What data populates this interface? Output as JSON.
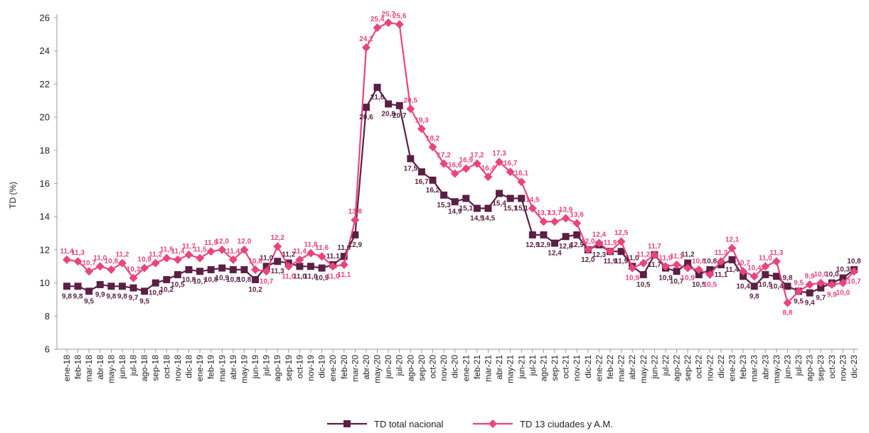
{
  "chart_data": {
    "type": "line",
    "ylabel": "TD (%)",
    "xlabel": "",
    "ylim": [
      6,
      26
    ],
    "yticks": [
      6,
      8,
      10,
      12,
      14,
      16,
      18,
      20,
      22,
      24,
      26
    ],
    "grid": false,
    "legend_position": "bottom",
    "categories": [
      "ene-18",
      "feb-18",
      "mar-18",
      "abr-18",
      "may-18",
      "jun-18",
      "jul-18",
      "ago-18",
      "sep-18",
      "oct-18",
      "nov-18",
      "dic-18",
      "ene-19",
      "feb-19",
      "mar-19",
      "abr-19",
      "may-19",
      "jun-19",
      "jul-19",
      "ago-19",
      "sep-19",
      "oct-19",
      "nov-19",
      "dic-19",
      "ene-20",
      "feb-20",
      "mar-20",
      "abr-20",
      "may-20",
      "jun-20",
      "jul-20",
      "ago-20",
      "sep-20",
      "oct-20",
      "nov-20",
      "dic-20",
      "ene-21",
      "feb-21",
      "mar-21",
      "abr-21",
      "may-21",
      "jun-21",
      "jul-21",
      "ago-21",
      "sep-21",
      "oct-21",
      "nov-21",
      "dic-21",
      "ene-22",
      "feb-22",
      "mar-22",
      "abr-22",
      "may-22",
      "jun-22",
      "jul-22",
      "ago-22",
      "sep-22",
      "oct-22",
      "nov-22",
      "dic-22",
      "ene-23",
      "feb-23",
      "mar-23",
      "abr-23",
      "may-23",
      "jun-23",
      "jul-23",
      "ago-23",
      "sep-23",
      "oct-23",
      "nov-23",
      "dic-23"
    ],
    "series": [
      {
        "name": "TD total nacional",
        "color": "#5b1f45",
        "marker": "square",
        "values": [
          9.8,
          9.8,
          9.5,
          9.9,
          9.8,
          9.8,
          9.7,
          9.5,
          10.0,
          10.2,
          10.5,
          10.8,
          10.7,
          10.8,
          10.9,
          10.8,
          10.8,
          10.2,
          11.0,
          11.3,
          11.2,
          11.0,
          11.0,
          10.9,
          11.1,
          11.6,
          12.9,
          20.6,
          21.8,
          20.8,
          20.7,
          17.5,
          16.7,
          16.2,
          15.3,
          14.9,
          15.1,
          14.5,
          14.5,
          15.4,
          15.1,
          15.1,
          12.9,
          12.9,
          12.4,
          12.8,
          12.9,
          12.0,
          12.3,
          11.9,
          11.9,
          11.0,
          10.5,
          11.7,
          10.9,
          10.7,
          11.2,
          10.5,
          10.8,
          11.1,
          11.4,
          10.4,
          9.8,
          10.5,
          10.4,
          9.8,
          9.5,
          9.4,
          9.7,
          10.0,
          10.3,
          10.8
        ]
      },
      {
        "name": "TD 13 ciudades y A.M.",
        "color": "#e8457d",
        "marker": "diamond",
        "values": [
          11.4,
          11.3,
          10.7,
          11.0,
          10.8,
          11.2,
          10.3,
          10.9,
          11.2,
          11.5,
          11.4,
          11.7,
          11.5,
          11.9,
          12.0,
          11.4,
          12.0,
          10.8,
          10.7,
          12.2,
          11.0,
          11.4,
          11.8,
          11.6,
          11.0,
          11.1,
          13.8,
          24.2,
          25.4,
          25.7,
          25.6,
          20.5,
          19.3,
          18.2,
          17.2,
          16.6,
          16.9,
          17.2,
          16.4,
          17.3,
          16.7,
          16.1,
          14.5,
          13.7,
          13.7,
          13.9,
          13.6,
          12.0,
          12.4,
          11.9,
          12.5,
          10.9,
          11.2,
          11.7,
          11.0,
          11.1,
          10.9,
          10.8,
          10.5,
          11.3,
          12.1,
          10.7,
          10.4,
          11.0,
          11.3,
          8.8,
          9.5,
          9.9,
          10.0,
          9.9,
          10.0,
          10.7
        ]
      }
    ]
  }
}
